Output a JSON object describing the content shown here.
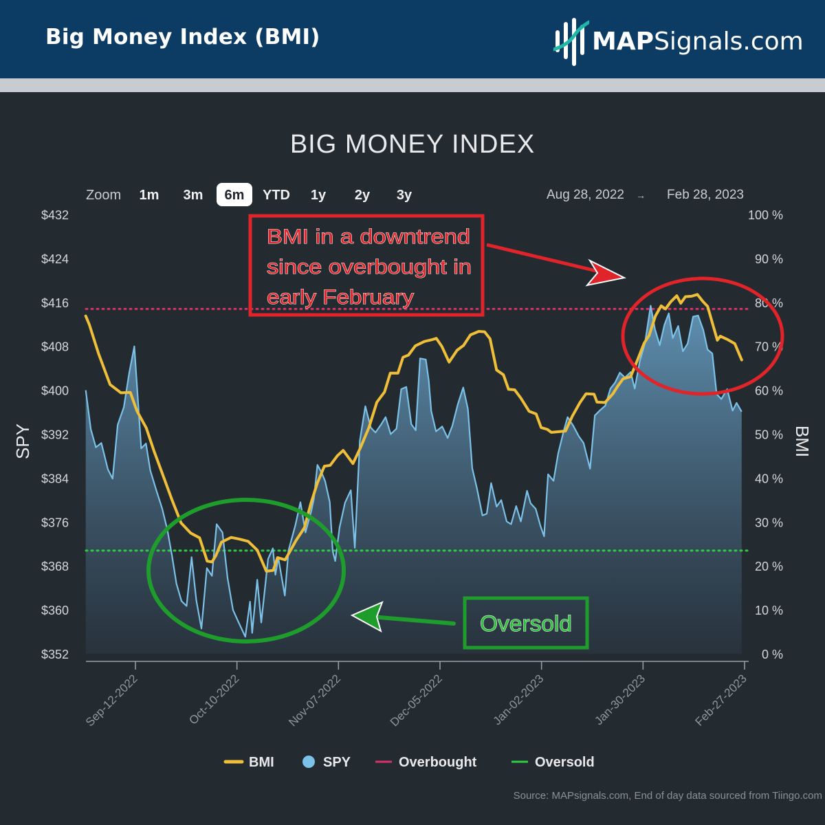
{
  "header": {
    "title": "Big Money Index (BMI)",
    "logo_bold": "MAP",
    "logo_rest": "Signals.com"
  },
  "colors": {
    "bmi": "#f0bf3a",
    "spy": "#7cc1e8",
    "overbought": "#d7336b",
    "oversold": "#2ecc40",
    "callout_red": "#e0242a",
    "callout_green": "#1f9d2c",
    "header_bg": "#0c3c63"
  },
  "chart_data": {
    "type": "line",
    "title": "BIG MONEY INDEX",
    "zoom": {
      "label": "Zoom",
      "options": [
        "1m",
        "3m",
        "6m",
        "YTD",
        "1y",
        "2y",
        "3y"
      ],
      "selected": "6m"
    },
    "date_range": {
      "from": "Aug 28, 2022",
      "arrow": "→",
      "to": "Feb 28, 2023"
    },
    "ylabel_left": "SPY",
    "ylabel_right": "BMI",
    "y_left_ticks": [
      "$432",
      "$424",
      "$416",
      "$408",
      "$400",
      "$392",
      "$384",
      "$376",
      "$368",
      "$360",
      "$352"
    ],
    "y_right_ticks": [
      "100 %",
      "90 %",
      "80 %",
      "70 %",
      "60 %",
      "50 %",
      "40 %",
      "30 %",
      "20 %",
      "10 %",
      "0 %"
    ],
    "x_ticks": [
      "Sep-12-2022",
      "Oct-10-2022",
      "Nov-07-2022",
      "Dec-05-2022",
      "Jan-02-2023",
      "Jan-30-2023",
      "Feb-27-2023"
    ],
    "ylim_left": [
      352,
      432
    ],
    "ylim_right": [
      0,
      100
    ],
    "x_day_range": [
      -12,
      168
    ],
    "x_tick_days": [
      0,
      28,
      56,
      84,
      112,
      140,
      168
    ],
    "overbought_level": 78.5,
    "oversold_level": 23.5,
    "series": [
      {
        "name": "BMI",
        "axis": "right",
        "points": [
          [
            -13.7,
            76.9
          ],
          [
            -12.7,
            74.9
          ],
          [
            -10.2,
            68.4
          ],
          [
            -7,
            61.3
          ],
          [
            -4,
            59.4
          ],
          [
            -1.4,
            59.5
          ],
          [
            0.4,
            55.3
          ],
          [
            3,
            51.4
          ],
          [
            5.2,
            46
          ],
          [
            7.7,
            40.4
          ],
          [
            10.1,
            35
          ],
          [
            12.6,
            29.8
          ],
          [
            15.2,
            27.5
          ],
          [
            17.7,
            26.4
          ],
          [
            19.8,
            21.1
          ],
          [
            21.1,
            20.9
          ],
          [
            22.2,
            22.4
          ],
          [
            23.7,
            25.4
          ],
          [
            26.4,
            26.5
          ],
          [
            28.7,
            26.1
          ],
          [
            31.1,
            25.6
          ],
          [
            33.6,
            23.6
          ],
          [
            36.1,
            18.8
          ],
          [
            38,
            19
          ],
          [
            39.2,
            21.9
          ],
          [
            41.3,
            21.4
          ],
          [
            44.3,
            25.8
          ],
          [
            46.6,
            28.7
          ],
          [
            48.4,
            34.3
          ],
          [
            50.2,
            38.9
          ],
          [
            52.1,
            42.7
          ],
          [
            53.7,
            42.9
          ],
          [
            55.7,
            45.1
          ],
          [
            57.3,
            46.3
          ],
          [
            60,
            43.3
          ],
          [
            62.1,
            47
          ],
          [
            64.4,
            51.5
          ],
          [
            66.6,
            57.3
          ],
          [
            68.7,
            59.6
          ],
          [
            70.3,
            63.9
          ],
          [
            72.4,
            63.9
          ],
          [
            73.8,
            67.5
          ],
          [
            75.3,
            68
          ],
          [
            77.2,
            70.1
          ],
          [
            79.7,
            71.1
          ],
          [
            81.8,
            71.5
          ],
          [
            83,
            71.8
          ],
          [
            84.5,
            70
          ],
          [
            86.5,
            66.4
          ],
          [
            88.7,
            69.1
          ],
          [
            90.5,
            70.2
          ],
          [
            92.4,
            72.6
          ],
          [
            94.7,
            73.4
          ],
          [
            96.3,
            73.3
          ],
          [
            97.8,
            71.7
          ],
          [
            99.6,
            64.6
          ],
          [
            101.5,
            63.5
          ],
          [
            102.9,
            60.2
          ],
          [
            104.6,
            60.1
          ],
          [
            106.3,
            58.2
          ],
          [
            108.6,
            55.2
          ],
          [
            110.5,
            54.6
          ],
          [
            111.9,
            51.5
          ],
          [
            113.6,
            51.1
          ],
          [
            114.7,
            50.4
          ],
          [
            118.6,
            50.7
          ],
          [
            120.5,
            54.1
          ],
          [
            122.6,
            57.2
          ],
          [
            124.3,
            59.2
          ],
          [
            126.5,
            59.1
          ],
          [
            127.3,
            57.3
          ],
          [
            129.5,
            57.2
          ],
          [
            131.7,
            59.2
          ],
          [
            133,
            60.9
          ],
          [
            134.5,
            62.6
          ],
          [
            136.6,
            63.1
          ],
          [
            138.2,
            66.3
          ],
          [
            140.3,
            70.7
          ],
          [
            141.7,
            72.5
          ],
          [
            143.4,
            76.9
          ],
          [
            145,
            79.2
          ],
          [
            146.2,
            78.5
          ],
          [
            147.6,
            80.1
          ],
          [
            149.3,
            81.5
          ],
          [
            150.4,
            79.8
          ],
          [
            151.7,
            81.3
          ],
          [
            153.4,
            81.4
          ],
          [
            155,
            81.8
          ],
          [
            156.5,
            80.2
          ],
          [
            157.8,
            79.1
          ],
          [
            160.5,
            71.4
          ],
          [
            161.3,
            72.3
          ],
          [
            163.4,
            71.5
          ],
          [
            165.3,
            70.6
          ],
          [
            167.2,
            66.9
          ]
        ]
      },
      {
        "name": "SPY",
        "axis": "left",
        "points": [
          [
            -13.7,
            400
          ],
          [
            -12.3,
            392.9
          ],
          [
            -10.9,
            389.6
          ],
          [
            -9.4,
            390.4
          ],
          [
            -7.6,
            385.6
          ],
          [
            -6.3,
            383.9
          ],
          [
            -4.9,
            393.7
          ],
          [
            -3.2,
            396.9
          ],
          [
            -1.7,
            403.2
          ],
          [
            -0.3,
            408
          ],
          [
            1.6,
            389.4
          ],
          [
            2.9,
            390.3
          ],
          [
            4.1,
            385.4
          ],
          [
            5.8,
            381.7
          ],
          [
            7.4,
            378.4
          ],
          [
            8.8,
            374.6
          ],
          [
            10.1,
            369.8
          ],
          [
            11.3,
            364.8
          ],
          [
            12.7,
            361.6
          ],
          [
            14.1,
            360.7
          ],
          [
            15.5,
            369.6
          ],
          [
            16.8,
            361.7
          ],
          [
            18.2,
            356.6
          ],
          [
            19.7,
            367.6
          ],
          [
            21.1,
            366.2
          ],
          [
            22.4,
            375.6
          ],
          [
            24,
            374.1
          ],
          [
            25.4,
            365.8
          ],
          [
            26.9,
            360
          ],
          [
            28.4,
            357.8
          ],
          [
            30.3,
            355.1
          ],
          [
            31.6,
            361.5
          ],
          [
            32.2,
            355.8
          ],
          [
            33.6,
            365.5
          ],
          [
            34.7,
            357.7
          ],
          [
            36.6,
            369.3
          ],
          [
            37.9,
            371.2
          ],
          [
            38.6,
            366.4
          ],
          [
            39.4,
            369.5
          ],
          [
            41.2,
            362.6
          ],
          [
            42.2,
            370.8
          ],
          [
            44.1,
            375.4
          ],
          [
            45.5,
            379.6
          ],
          [
            46.9,
            374.1
          ],
          [
            48.5,
            378
          ],
          [
            49.2,
            380.2
          ],
          [
            50.2,
            386.4
          ],
          [
            51.4,
            384.9
          ],
          [
            52.3,
            383.5
          ],
          [
            53.6,
            379.6
          ],
          [
            54.4,
            370.7
          ],
          [
            55.1,
            368.9
          ],
          [
            56.3,
            375
          ],
          [
            57.8,
            379.5
          ],
          [
            59.4,
            381.8
          ],
          [
            60.5,
            371.3
          ],
          [
            61.9,
            390.8
          ],
          [
            63.4,
            397.1
          ],
          [
            64.9,
            393.2
          ],
          [
            66.2,
            392.3
          ],
          [
            67.7,
            393.7
          ],
          [
            69,
            395.1
          ],
          [
            70.4,
            392
          ],
          [
            72,
            393
          ],
          [
            73.3,
            400.2
          ],
          [
            74.7,
            400.6
          ],
          [
            76.1,
            393.8
          ],
          [
            77.3,
            392.7
          ],
          [
            78.5,
            405.8
          ],
          [
            80.1,
            405.6
          ],
          [
            80.9,
            401.7
          ],
          [
            81.6,
            396.2
          ],
          [
            82.9,
            392.5
          ],
          [
            84.6,
            393.4
          ],
          [
            86.1,
            391.3
          ],
          [
            87.4,
            393.5
          ],
          [
            88.9,
            397.4
          ],
          [
            90.4,
            400.5
          ],
          [
            91.7,
            396.6
          ],
          [
            92.9,
            385.8
          ],
          [
            94.2,
            382.1
          ],
          [
            95.7,
            377.2
          ],
          [
            96.9,
            377.5
          ],
          [
            98.1,
            383.1
          ],
          [
            99.6,
            378.8
          ],
          [
            100.9,
            380
          ],
          [
            102.4,
            376.1
          ],
          [
            103.6,
            375.6
          ],
          [
            105,
            378.9
          ],
          [
            106.3,
            376.1
          ],
          [
            108,
            381.7
          ],
          [
            109,
            379.4
          ],
          [
            110.4,
            378.4
          ],
          [
            111.7,
            375.3
          ],
          [
            112.7,
            373.4
          ],
          [
            113.8,
            384.7
          ],
          [
            115.3,
            383.5
          ],
          [
            116.6,
            388.5
          ],
          [
            118.2,
            392.8
          ],
          [
            119.2,
            395.1
          ],
          [
            120.7,
            393.6
          ],
          [
            122.3,
            391.6
          ],
          [
            123.6,
            390.4
          ],
          [
            125.4,
            385.7
          ],
          [
            126.7,
            395.4
          ],
          [
            128.2,
            396.4
          ],
          [
            129.6,
            397.2
          ],
          [
            131,
            400.3
          ],
          [
            132.3,
            401.4
          ],
          [
            133.6,
            403.2
          ],
          [
            135,
            402.3
          ],
          [
            136.6,
            403.3
          ],
          [
            137.7,
            400.3
          ],
          [
            139.1,
            405.3
          ],
          [
            140.5,
            408.5
          ],
          [
            142.1,
            415.4
          ],
          [
            143.3,
            411.1
          ],
          [
            144.6,
            408.2
          ],
          [
            145.9,
            411.9
          ],
          [
            147.1,
            414
          ],
          [
            148.2,
            409.5
          ],
          [
            149.7,
            411.7
          ],
          [
            151,
            407.1
          ],
          [
            152.3,
            408.5
          ],
          [
            153.8,
            413.4
          ],
          [
            155.2,
            413.6
          ],
          [
            156.6,
            411
          ],
          [
            157.8,
            407.4
          ],
          [
            159.1,
            406.7
          ],
          [
            160.3,
            399.3
          ],
          [
            161.6,
            398.4
          ],
          [
            163.2,
            400.2
          ],
          [
            164.7,
            396.3
          ],
          [
            165.8,
            397.7
          ],
          [
            167.2,
            396.1
          ]
        ]
      },
      {
        "name": "Overbought",
        "axis": "right",
        "constant": 78.5
      },
      {
        "name": "Oversold",
        "axis": "right",
        "constant": 23.5
      }
    ],
    "legend": {
      "placement": "bottom-center",
      "items": [
        "BMI",
        "SPY",
        "Overbought",
        "Oversold"
      ]
    },
    "annotations": [
      {
        "text_lines": [
          "BMI in a downtrend",
          "since overbought in",
          "early February"
        ],
        "color": "red"
      },
      {
        "text_lines": [
          "Oversold"
        ],
        "color": "green"
      }
    ],
    "source": "Source: MAPsignals.com, End of day data sourced from Tiingo.com"
  }
}
